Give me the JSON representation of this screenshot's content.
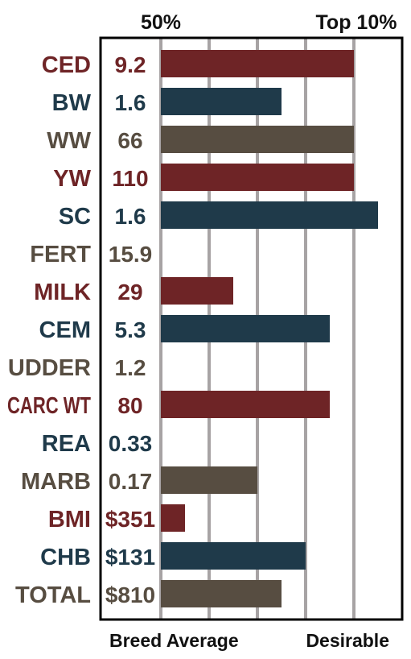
{
  "chart_data": {
    "type": "bar",
    "top_labels": [
      "50%",
      "Top 10%"
    ],
    "bottom_labels": [
      "Breed Average",
      "Desirable"
    ],
    "percentile_scale": [
      0,
      100
    ],
    "palette": {
      "red": "#6e2426",
      "blue": "#1f3a4a",
      "gray": "#574d41"
    },
    "rows": [
      {
        "trait": "CED",
        "value": "9.2",
        "bar": 80,
        "color": "red"
      },
      {
        "trait": "BW",
        "value": "1.6",
        "bar": 50,
        "color": "blue"
      },
      {
        "trait": "WW",
        "value": "66",
        "bar": 80,
        "color": "gray"
      },
      {
        "trait": "YW",
        "value": "110",
        "bar": 80,
        "color": "red"
      },
      {
        "trait": "SC",
        "value": "1.6",
        "bar": 90,
        "color": "blue"
      },
      {
        "trait": "FERT",
        "value": "15.9",
        "bar": 0,
        "color": "gray"
      },
      {
        "trait": "MILK",
        "value": "29",
        "bar": 30,
        "color": "red"
      },
      {
        "trait": "CEM",
        "value": "5.3",
        "bar": 70,
        "color": "blue"
      },
      {
        "trait": "UDDER",
        "value": "1.2",
        "bar": 0,
        "color": "gray"
      },
      {
        "trait": "CARC WT",
        "value": "80",
        "bar": 70,
        "color": "red"
      },
      {
        "trait": "REA",
        "value": "0.33",
        "bar": 0,
        "color": "blue"
      },
      {
        "trait": "MARB",
        "value": "0.17",
        "bar": 40,
        "color": "gray"
      },
      {
        "trait": "BMI",
        "value": "$351",
        "bar": 10,
        "color": "red"
      },
      {
        "trait": "CHB",
        "value": "$131",
        "bar": 60,
        "color": "blue"
      },
      {
        "trait": "TOTAL",
        "value": "$810",
        "bar": 50,
        "color": "gray"
      }
    ]
  }
}
